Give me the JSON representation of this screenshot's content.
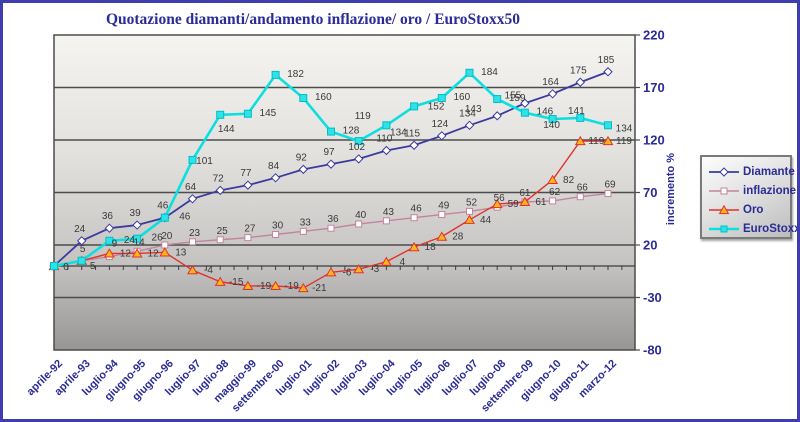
{
  "chart_data": {
    "type": "line",
    "title": "Quotazione diamanti/andamento inflazione/ oro / EuroStoxx50",
    "ylabel": "incremento %",
    "ylim": [
      -80,
      220
    ],
    "yticks": [
      220,
      170,
      120,
      70,
      20,
      -30,
      -80
    ],
    "grid": "horizontal",
    "legend_position": "right",
    "categories": [
      "aprile-92",
      "aprile-93",
      "luglio-94",
      "giugno-95",
      "giugno-96",
      "luglio-97",
      "luglio-98",
      "maggio-99",
      "settembre-00",
      "luglio-01",
      "luglio-02",
      "luglio-03",
      "luglio-04",
      "luglio-05",
      "luglio-06",
      "luglio-07",
      "luglio-08",
      "settembre-09",
      "giugno-10",
      "giugno-11",
      "marzo-12"
    ],
    "series": [
      {
        "name": "Diamante",
        "marker": "diamond",
        "color": "#3b3b9e",
        "marker_fill": "#ffffff",
        "values": [
          0,
          24,
          36,
          39,
          46,
          64,
          72,
          77,
          84,
          92,
          97,
          102,
          110,
          115,
          124,
          134,
          143,
          155,
          164,
          175,
          185
        ]
      },
      {
        "name": "inflazione",
        "marker": "square",
        "color": "#c2849e",
        "marker_fill": "#ffffff",
        "values": [
          0,
          5,
          9,
          14,
          20,
          23,
          25,
          27,
          30,
          33,
          36,
          40,
          43,
          46,
          49,
          52,
          56,
          61,
          62,
          66,
          69
        ]
      },
      {
        "name": "Oro",
        "marker": "triangle",
        "color": "#e0322a",
        "marker_fill": "#ffb41e",
        "values": [
          0,
          5,
          12,
          12,
          13,
          -4,
          -15,
          -19,
          -19,
          -21,
          -6,
          -3,
          4,
          18,
          28,
          44,
          59,
          61,
          82,
          119,
          119
        ]
      },
      {
        "name": "EuroStoxx50",
        "marker": "square",
        "color": "#0cdfdf",
        "marker_fill": "#2fe2e8",
        "values": [
          0,
          5,
          24,
          26,
          46,
          101,
          144,
          145,
          182,
          160,
          128,
          119,
          134,
          152,
          160,
          184,
          159,
          146,
          140,
          141,
          134
        ]
      }
    ],
    "colors": {
      "title_text": "#2b2b96",
      "axis_text": "#2b2b96",
      "data_label_text": "#3a3a3a",
      "gridline": "#4c4c4c",
      "plot_bg_top": "#f5f4f1",
      "plot_bg_bottom": "#989694",
      "frame_border": "#3d3dae",
      "legend_border": "#7a7a7a"
    }
  }
}
